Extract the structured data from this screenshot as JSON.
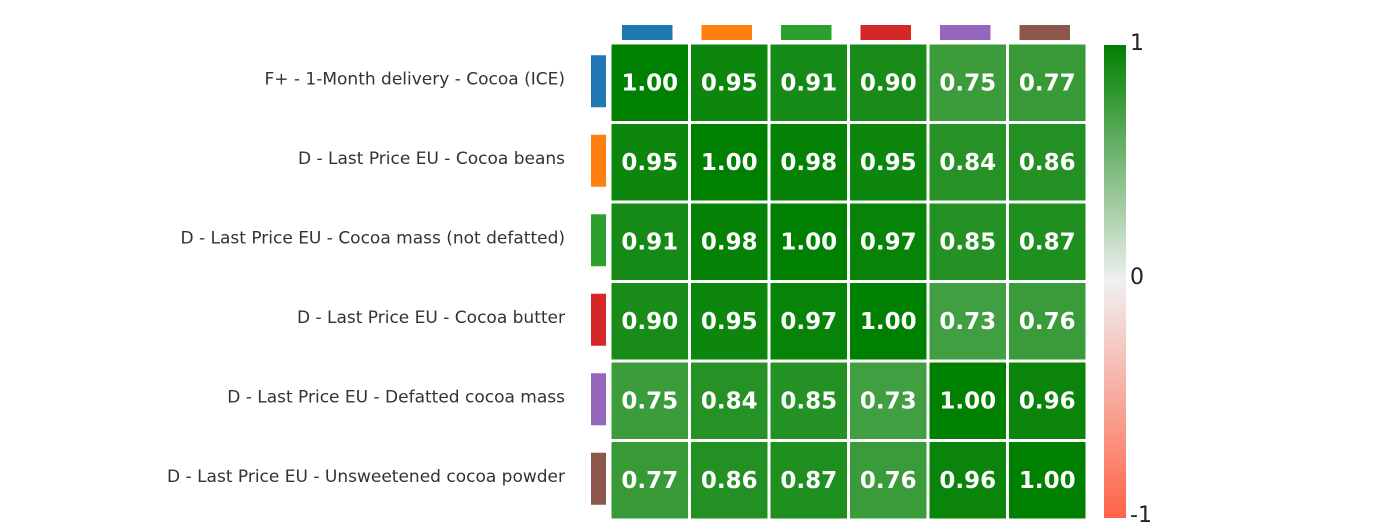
{
  "chart_data": {
    "type": "heatmap",
    "title": "",
    "rows": [
      "F+ - 1-Month delivery - Cocoa (ICE)",
      "D - Last Price EU - Cocoa beans",
      "D - Last Price EU - Cocoa mass (not defatted)",
      "D - Last Price EU - Cocoa butter",
      "D - Last Price EU - Defatted cocoa mass",
      "D - Last Price EU - Unsweetened cocoa powder"
    ],
    "series_colors": [
      "#1f77b4",
      "#ff7f0e",
      "#2ca02c",
      "#d62728",
      "#9467bd",
      "#8c564b"
    ],
    "values": [
      [
        1.0,
        0.95,
        0.91,
        0.9,
        0.75,
        0.77
      ],
      [
        0.95,
        1.0,
        0.98,
        0.95,
        0.84,
        0.86
      ],
      [
        0.91,
        0.98,
        1.0,
        0.97,
        0.85,
        0.87
      ],
      [
        0.9,
        0.95,
        0.97,
        1.0,
        0.73,
        0.76
      ],
      [
        0.75,
        0.84,
        0.85,
        0.73,
        1.0,
        0.96
      ],
      [
        0.77,
        0.86,
        0.87,
        0.76,
        0.96,
        1.0
      ]
    ],
    "value_format": "2 decimals",
    "colorscale": {
      "min": -1,
      "mid": 0,
      "max": 1,
      "colors": [
        "#ff6347",
        "#f0f0f0",
        "#008000"
      ],
      "tick_labels": [
        "1",
        "0",
        "-1"
      ]
    }
  }
}
